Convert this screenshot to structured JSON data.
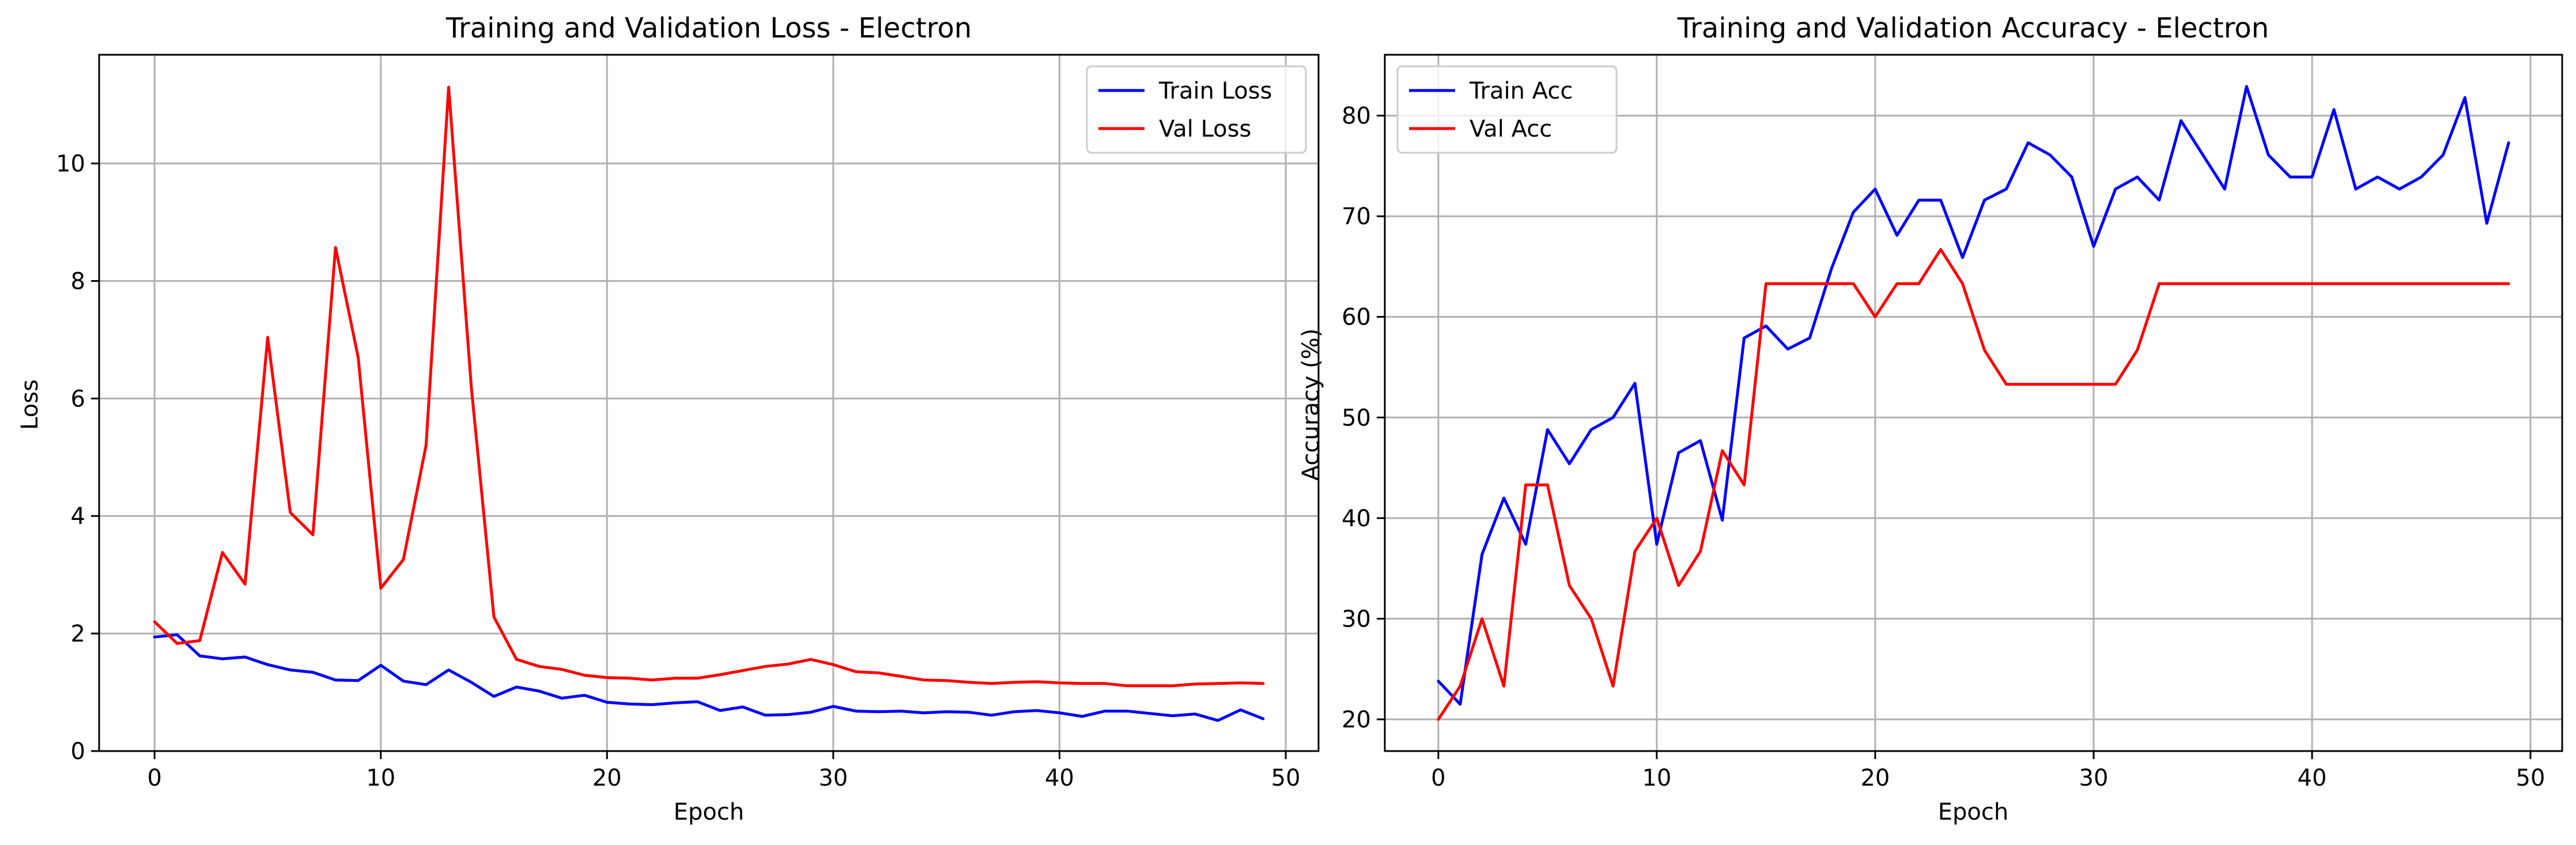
{
  "chart_data": [
    {
      "type": "line",
      "title": "Training and Validation Loss - Electron",
      "xlabel": "Epoch",
      "ylabel": "Loss",
      "xlim": [
        -2.45,
        51.45
      ],
      "ylim": [
        0,
        11.85
      ],
      "xticks": [
        0,
        10,
        20,
        30,
        40,
        50
      ],
      "yticks": [
        0,
        2,
        4,
        6,
        8,
        10
      ],
      "grid": true,
      "legend_position": "top-right",
      "x": [
        0,
        1,
        2,
        3,
        4,
        5,
        6,
        7,
        8,
        9,
        10,
        11,
        12,
        13,
        14,
        15,
        16,
        17,
        18,
        19,
        20,
        21,
        22,
        23,
        24,
        25,
        26,
        27,
        28,
        29,
        30,
        31,
        32,
        33,
        34,
        35,
        36,
        37,
        38,
        39,
        40,
        41,
        42,
        43,
        44,
        45,
        46,
        47,
        48,
        49
      ],
      "series": [
        {
          "name": "Train Loss",
          "color": "#0000ff",
          "values": [
            1.94,
            1.98,
            1.62,
            1.57,
            1.6,
            1.47,
            1.38,
            1.34,
            1.21,
            1.2,
            1.46,
            1.19,
            1.13,
            1.38,
            1.17,
            0.93,
            1.09,
            1.02,
            0.9,
            0.95,
            0.83,
            0.8,
            0.79,
            0.82,
            0.84,
            0.69,
            0.75,
            0.61,
            0.62,
            0.66,
            0.76,
            0.68,
            0.67,
            0.68,
            0.65,
            0.67,
            0.66,
            0.61,
            0.67,
            0.69,
            0.65,
            0.59,
            0.68,
            0.68,
            0.64,
            0.6,
            0.63,
            0.52,
            0.7,
            0.55
          ]
        },
        {
          "name": "Val Loss",
          "color": "#ff0000",
          "values": [
            2.2,
            1.83,
            1.88,
            3.38,
            2.84,
            7.04,
            4.06,
            3.68,
            8.57,
            6.7,
            2.77,
            3.26,
            5.2,
            11.3,
            6.2,
            2.28,
            1.56,
            1.44,
            1.39,
            1.29,
            1.25,
            1.24,
            1.21,
            1.24,
            1.24,
            1.3,
            1.37,
            1.44,
            1.48,
            1.56,
            1.47,
            1.35,
            1.33,
            1.27,
            1.21,
            1.2,
            1.17,
            1.15,
            1.17,
            1.18,
            1.16,
            1.15,
            1.15,
            1.11,
            1.11,
            1.11,
            1.14,
            1.15,
            1.16,
            1.15
          ]
        }
      ]
    },
    {
      "type": "line",
      "title": "Training and Validation Accuracy - Electron",
      "xlabel": "Epoch",
      "ylabel": "Accuracy (%)",
      "xlim": [
        -2.45,
        51.45
      ],
      "ylim": [
        16.85,
        86.05
      ],
      "xticks": [
        0,
        10,
        20,
        30,
        40,
        50
      ],
      "yticks": [
        20,
        30,
        40,
        50,
        60,
        70,
        80
      ],
      "grid": true,
      "legend_position": "top-left",
      "x": [
        0,
        1,
        2,
        3,
        4,
        5,
        6,
        7,
        8,
        9,
        10,
        11,
        12,
        13,
        14,
        15,
        16,
        17,
        18,
        19,
        20,
        21,
        22,
        23,
        24,
        25,
        26,
        27,
        28,
        29,
        30,
        31,
        32,
        33,
        34,
        35,
        36,
        37,
        38,
        39,
        40,
        41,
        42,
        43,
        44,
        45,
        46,
        47,
        48,
        49
      ],
      "series": [
        {
          "name": "Train Acc",
          "color": "#0000ff",
          "values": [
            23.8,
            21.5,
            36.4,
            42.0,
            37.4,
            48.8,
            45.4,
            48.8,
            50.0,
            53.4,
            37.4,
            46.5,
            47.7,
            39.8,
            57.9,
            59.1,
            56.8,
            57.9,
            64.8,
            70.4,
            72.7,
            68.1,
            71.6,
            71.6,
            65.9,
            71.6,
            72.7,
            77.3,
            76.1,
            73.9,
            67.0,
            72.7,
            73.9,
            71.6,
            79.5,
            76.1,
            72.7,
            82.9,
            76.1,
            73.9,
            73.9,
            80.6,
            72.7,
            73.9,
            72.7,
            73.9,
            76.1,
            81.8,
            69.3,
            77.3
          ]
        },
        {
          "name": "Val Acc",
          "color": "#ff0000",
          "values": [
            20.0,
            23.3,
            30.0,
            23.3,
            43.3,
            43.3,
            33.3,
            30.0,
            23.3,
            36.7,
            40.0,
            33.3,
            36.7,
            46.7,
            43.3,
            63.3,
            63.3,
            63.3,
            63.3,
            63.3,
            60.0,
            63.3,
            63.3,
            66.7,
            63.3,
            56.7,
            53.3,
            53.3,
            53.3,
            53.3,
            53.3,
            53.3,
            56.7,
            63.3,
            63.3,
            63.3,
            63.3,
            63.3,
            63.3,
            63.3,
            63.3,
            63.3,
            63.3,
            63.3,
            63.3,
            63.3,
            63.3,
            63.3,
            63.3,
            63.3
          ]
        }
      ]
    }
  ]
}
